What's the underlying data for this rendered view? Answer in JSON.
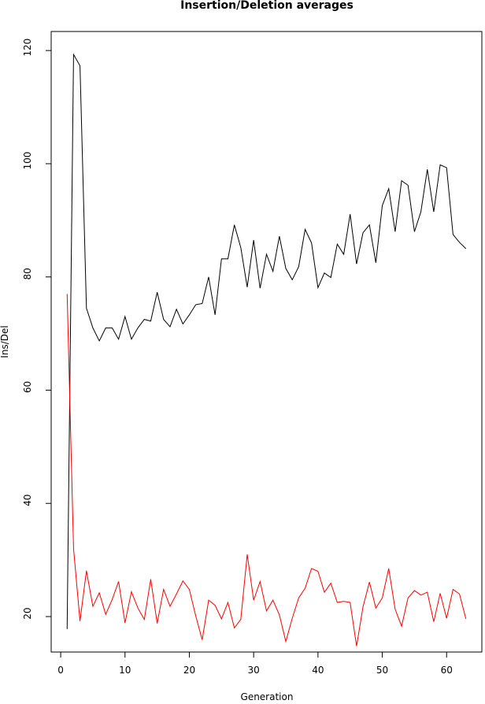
{
  "chart_data": {
    "type": "line",
    "title": "Insertion/Deletion averages",
    "xlabel": "Generation",
    "ylabel": "Ins/Del",
    "x": [
      1,
      2,
      3,
      4,
      5,
      6,
      7,
      8,
      9,
      10,
      11,
      12,
      13,
      14,
      15,
      16,
      17,
      18,
      19,
      20,
      21,
      22,
      23,
      24,
      25,
      26,
      27,
      28,
      29,
      30,
      31,
      32,
      33,
      34,
      35,
      36,
      37,
      38,
      39,
      40,
      41,
      42,
      43,
      44,
      45,
      46,
      47,
      48,
      49,
      50,
      51,
      52,
      53,
      54,
      55,
      56,
      57,
      58,
      59,
      60,
      61,
      62,
      63
    ],
    "series": [
      {
        "color": "#000000",
        "values": [
          17.8,
          119.3,
          117.3,
          74.5,
          71,
          68.7,
          71,
          71,
          69,
          73,
          69,
          71,
          72.5,
          72.2,
          77.3,
          72.5,
          71.2,
          74.3,
          71.7,
          73.3,
          75.1,
          75.3,
          80,
          73.3,
          83.2,
          83.2,
          89.2,
          85.2,
          78.2,
          86.5,
          78,
          84,
          81,
          87.2,
          81.5,
          79.5,
          81.8,
          88.4,
          86,
          78.1,
          80.7,
          79.9,
          85.8,
          84,
          91.1,
          82.3,
          87.8,
          89.2,
          82.5,
          92.6,
          95.6,
          88,
          97,
          96.2,
          88,
          91.5,
          99,
          91.5,
          99.8,
          99.3,
          87.5,
          86.1,
          85
        ]
      },
      {
        "color": "#ff0000",
        "values": [
          77,
          32,
          19.2,
          28.1,
          21.8,
          24.2,
          20.4,
          23,
          26.2,
          18.9,
          24.4,
          21.5,
          19.5,
          26.6,
          18.8,
          24.8,
          21.8,
          24,
          26.3,
          24.8,
          20.1,
          15.9,
          22.9,
          22,
          19.6,
          22.5,
          18,
          19.5,
          31,
          22.9,
          26.2,
          21,
          22.9,
          20.3,
          15.6,
          19.7,
          23.3,
          25,
          28.5,
          28,
          24.3,
          25.9,
          22.5,
          22.7,
          22.5,
          14.8,
          21.7,
          26.1,
          21.5,
          23.3,
          28.5,
          21.3,
          18.3,
          23.3,
          24.6,
          23.8,
          24.3,
          19.1,
          24.1,
          19.7,
          24.8,
          24,
          19.6
        ]
      }
    ],
    "xlim": [
      -1.48,
      65.48
    ],
    "ylim": [
      13.74,
      123.36
    ],
    "xticks": [
      0,
      10,
      20,
      30,
      40,
      50,
      60
    ],
    "yticks": [
      20,
      40,
      60,
      80,
      100,
      120
    ]
  }
}
